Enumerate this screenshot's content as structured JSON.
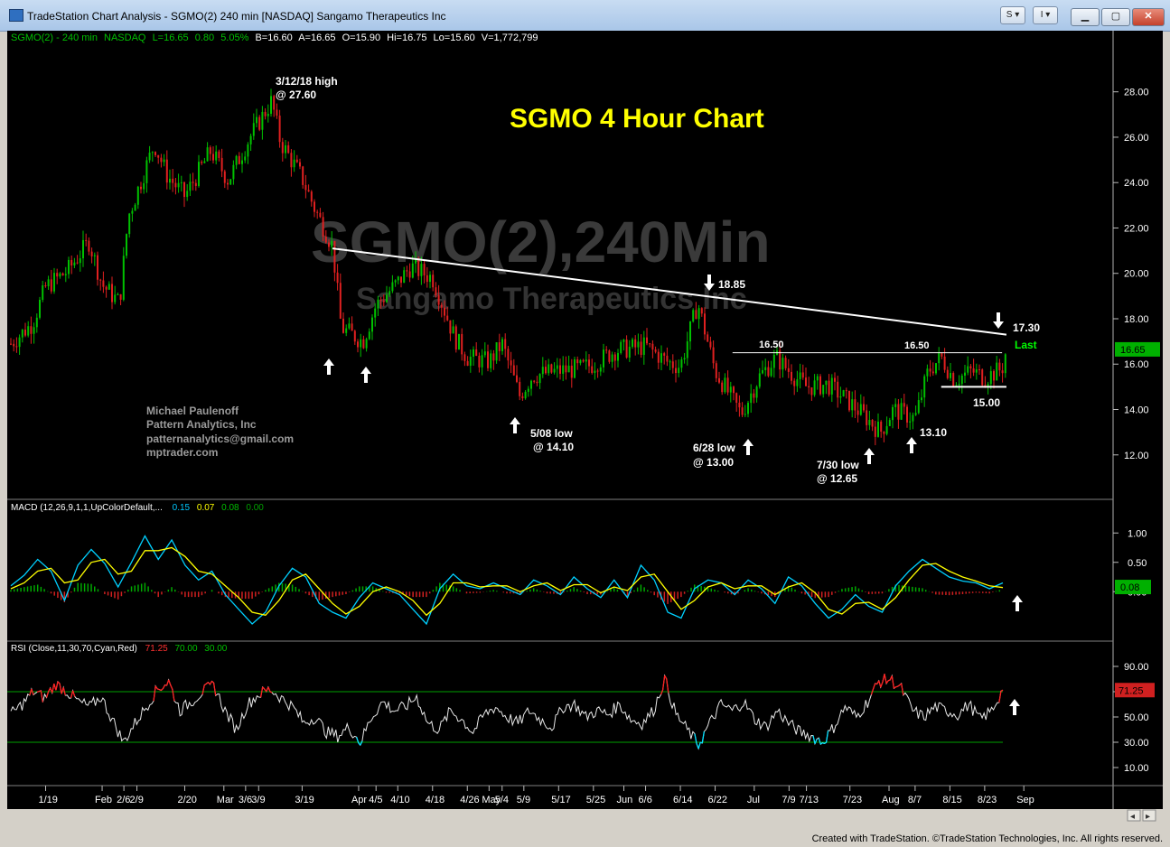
{
  "window": {
    "title": "TradeStation Chart Analysis - SGMO(2) 240 min [NASDAQ] Sangamo Therapeutics Inc",
    "buttons": [
      "S",
      "I"
    ],
    "controls": [
      "minimize",
      "maximize",
      "close"
    ]
  },
  "header": {
    "symbol": "SGMO(2) - 240 min",
    "exchange": "NASDAQ",
    "last": "L=16.65",
    "change": "0.80",
    "change_pct": "5.05%",
    "bid": "B=16.60",
    "ask": "A=16.65",
    "open": "O=15.90",
    "high": "Hi=16.75",
    "low": "Lo=15.60",
    "volume": "V=1,772,799"
  },
  "chart_data": {
    "type": "candlestick",
    "title": "SGMO 4 Hour Chart",
    "watermark": "SGMO(2),240Min",
    "watermark_sub": "Sangamo Therapeutics Inc",
    "price_axis_ticks": [
      "28.00",
      "26.00",
      "24.00",
      "22.00",
      "20.00",
      "18.00",
      "16.00",
      "14.00",
      "12.00"
    ],
    "ylim": [
      10.2,
      29.5
    ],
    "last_price_label": "16.65",
    "x_labels": [
      "1/19",
      "Feb",
      "2/6",
      "2/9",
      "2/20",
      "Mar",
      "3/6",
      "3/9",
      "3/19",
      "Apr",
      "4/5",
      "4/10",
      "4/18",
      "4/26",
      "May",
      "5/4",
      "5/9",
      "5/17",
      "5/25",
      "Jun",
      "6/6",
      "6/14",
      "6/22",
      "Jul",
      "7/9",
      "7/13",
      "7/23",
      "Aug",
      "8/7",
      "8/15",
      "8/23",
      "Sep"
    ],
    "price_path": [
      [
        "1/11",
        16.9
      ],
      [
        "1/16",
        17.8
      ],
      [
        "1/19",
        19.4
      ],
      [
        "1/24",
        20.1
      ],
      [
        "1/29",
        21.4
      ],
      [
        "2/1",
        19.5
      ],
      [
        "2/5",
        18.7
      ],
      [
        "2/7",
        22.5
      ],
      [
        "2/13",
        25.7
      ],
      [
        "2/16",
        24.3
      ],
      [
        "2/20",
        23.4
      ],
      [
        "2/26",
        25.4
      ],
      [
        "3/2",
        24.1
      ],
      [
        "3/7",
        26.0
      ],
      [
        "3/12",
        27.6
      ],
      [
        "3/14",
        25.8
      ],
      [
        "3/19",
        24.2
      ],
      [
        "3/22",
        22.8
      ],
      [
        "3/26",
        21.2
      ],
      [
        "3/28",
        17.6
      ],
      [
        "4/2",
        17.0
      ],
      [
        "4/5",
        18.6
      ],
      [
        "4/10",
        19.6
      ],
      [
        "4/13",
        20.3
      ],
      [
        "4/18",
        19.8
      ],
      [
        "4/23",
        17.2
      ],
      [
        "4/26",
        16.3
      ],
      [
        "5/1",
        16.1
      ],
      [
        "5/4",
        16.9
      ],
      [
        "5/8",
        14.6
      ],
      [
        "5/11",
        15.5
      ],
      [
        "5/17",
        15.7
      ],
      [
        "5/22",
        15.8
      ],
      [
        "5/25",
        16.0
      ],
      [
        "5/30",
        16.6
      ],
      [
        "6/6",
        16.8
      ],
      [
        "6/11",
        16.1
      ],
      [
        "6/14",
        15.9
      ],
      [
        "6/18",
        18.7
      ],
      [
        "6/22",
        15.7
      ],
      [
        "6/28",
        13.8
      ],
      [
        "7/2",
        15.4
      ],
      [
        "7/6",
        16.3
      ],
      [
        "7/10",
        15.5
      ],
      [
        "7/13",
        15.0
      ],
      [
        "7/18",
        15.1
      ],
      [
        "7/23",
        14.3
      ],
      [
        "7/27",
        13.6
      ],
      [
        "7/30",
        13.0
      ],
      [
        "8/2",
        14.0
      ],
      [
        "8/7",
        13.6
      ],
      [
        "8/10",
        15.7
      ],
      [
        "8/13",
        16.3
      ],
      [
        "8/16",
        15.3
      ],
      [
        "8/20",
        15.7
      ],
      [
        "8/23",
        15.4
      ],
      [
        "8/27",
        15.8
      ],
      [
        "8/28",
        16.65
      ]
    ],
    "trendline": [
      [
        "3/26",
        21.1
      ],
      [
        "8/28",
        17.3
      ]
    ],
    "resistance_line": {
      "from": "6/26",
      "to": "8/27",
      "value": 16.5
    },
    "support_line": {
      "from": "8/13",
      "to": "8/28",
      "value": 15.0
    },
    "annotations": {
      "high": [
        "3/12/18 high",
        "@ 27.60"
      ],
      "title_color": "#ffff00",
      "level_18_85": "18.85",
      "level_16_50_a": "16.50",
      "level_16_50_b": "16.50",
      "level_17_30": "17.30",
      "last": "Last",
      "level_15": "15.00",
      "level_13_10": "13.10",
      "low_0508": [
        "5/08 low",
        "@ 14.10"
      ],
      "low_0628": [
        "6/28 low",
        "@ 13.00"
      ],
      "low_0730": [
        "7/30 low",
        "@ 12.65"
      ],
      "author": [
        "Michael Paulenoff",
        "Pattern Analytics, Inc",
        "patternanalytics@gmail.com",
        "mptrader.com"
      ]
    },
    "macd": {
      "label": "MACD (12,26,9,1,1,UpColorDefault,...",
      "values": [
        "0.15",
        "0.07",
        "0.08",
        "0.00"
      ],
      "value_colors": [
        "#00c8ff",
        "#ffff00",
        "#00c000",
        "#00a000"
      ],
      "ticks": [
        "1.00",
        "0.50",
        "0.00"
      ],
      "last_label": "0.08",
      "macd_line": [
        0.1,
        0.28,
        0.55,
        0.35,
        -0.15,
        0.45,
        0.72,
        0.48,
        0.08,
        0.5,
        0.95,
        0.55,
        0.88,
        0.45,
        0.2,
        0.35,
        -0.05,
        -0.3,
        -0.55,
        -0.35,
        0.1,
        0.4,
        0.25,
        -0.2,
        -0.35,
        -0.45,
        -0.1,
        0.15,
        0.05,
        -0.05,
        -0.3,
        -0.55,
        0.05,
        0.3,
        0.1,
        0.05,
        0.15,
        0.05,
        -0.05,
        0.2,
        0.1,
        -0.05,
        0.25,
        0.05,
        -0.1,
        0.2,
        -0.1,
        0.45,
        0.2,
        -0.35,
        -0.45,
        0.05,
        0.2,
        0.15,
        -0.05,
        0.2,
        0.05,
        -0.2,
        0.25,
        0.1,
        -0.2,
        -0.45,
        -0.3,
        -0.05,
        -0.25,
        -0.35,
        0.1,
        0.35,
        0.55,
        0.4,
        0.25,
        0.18,
        0.15,
        0.05,
        0.15
      ],
      "signal_line": [
        0.05,
        0.15,
        0.35,
        0.4,
        0.15,
        0.2,
        0.5,
        0.55,
        0.3,
        0.35,
        0.7,
        0.7,
        0.75,
        0.6,
        0.35,
        0.3,
        0.1,
        -0.1,
        -0.35,
        -0.4,
        -0.15,
        0.2,
        0.3,
        0.05,
        -0.2,
        -0.38,
        -0.25,
        0.0,
        0.08,
        0.0,
        -0.15,
        -0.4,
        -0.2,
        0.15,
        0.15,
        0.08,
        0.1,
        0.1,
        0.0,
        0.1,
        0.15,
        0.02,
        0.12,
        0.12,
        -0.02,
        0.08,
        0.02,
        0.25,
        0.3,
        0.0,
        -0.3,
        -0.15,
        0.08,
        0.15,
        0.05,
        0.1,
        0.1,
        -0.05,
        0.08,
        0.15,
        -0.02,
        -0.3,
        -0.38,
        -0.2,
        -0.18,
        -0.3,
        -0.1,
        0.2,
        0.45,
        0.48,
        0.35,
        0.25,
        0.18,
        0.1,
        0.07
      ]
    },
    "rsi": {
      "label": "RSI (Close,11,30,70,Cyan,Red)",
      "values": [
        "71.25",
        "70.00",
        "30.00"
      ],
      "value_colors": [
        "#ff3030",
        "#00c000",
        "#00c000"
      ],
      "ticks": [
        "90.00",
        "70.00",
        "50.00",
        "30.00",
        "10.00"
      ],
      "last_label": "71.25",
      "levels": [
        70,
        30
      ],
      "series": [
        52,
        60,
        70,
        65,
        76,
        70,
        62,
        58,
        66,
        48,
        30,
        45,
        58,
        72,
        78,
        55,
        62,
        70,
        75,
        55,
        40,
        60,
        68,
        72,
        65,
        58,
        45,
        50,
        38,
        35,
        42,
        30,
        50,
        62,
        55,
        58,
        66,
        45,
        40,
        55,
        48,
        38,
        52,
        58,
        50,
        45,
        55,
        48,
        42,
        58,
        60,
        50,
        55,
        52,
        60,
        48,
        45,
        55,
        80,
        52,
        40,
        28,
        45,
        60,
        55,
        62,
        48,
        42,
        55,
        45,
        38,
        35,
        30,
        42,
        58,
        50,
        62,
        78,
        80,
        72,
        55,
        50,
        58,
        55,
        52,
        60,
        48,
        55,
        71.25
      ]
    }
  },
  "footer": {
    "credit": "Created with TradeStation. ©TradeStation Technologies, Inc. All rights reserved."
  }
}
